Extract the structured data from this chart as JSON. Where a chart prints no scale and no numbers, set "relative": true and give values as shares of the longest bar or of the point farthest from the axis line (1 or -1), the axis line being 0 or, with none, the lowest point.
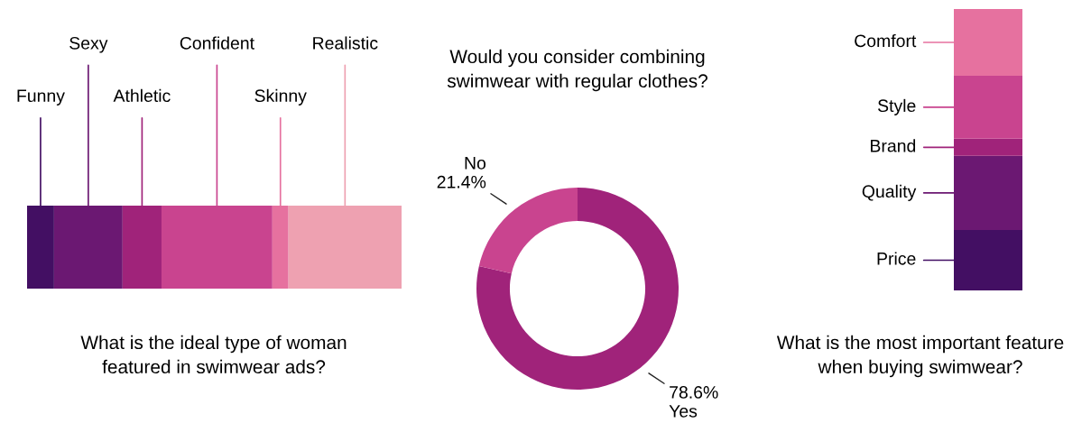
{
  "chart_data": [
    {
      "type": "bar",
      "orientation": "horizontal",
      "stacked": true,
      "relative": true,
      "title": "What is the ideal type of woman\nfeatured in swimwear ads?",
      "categories": [
        null
      ],
      "series": [
        {
          "name": "Funny",
          "color": "#430f63",
          "values": [
            0.072
          ]
        },
        {
          "name": "Sexy",
          "color": "#6b1872",
          "values": [
            0.183
          ]
        },
        {
          "name": "Athletic",
          "color": "#a0237a",
          "values": [
            0.104
          ]
        },
        {
          "name": "Confident",
          "color": "#c9448f",
          "values": [
            0.296
          ]
        },
        {
          "name": "Skinny",
          "color": "#e6719f",
          "values": [
            0.043
          ]
        },
        {
          "name": "Realistic",
          "color": "#eea1b1",
          "values": [
            0.302
          ]
        }
      ]
    },
    {
      "type": "donut",
      "title": "Would you consider combining\nswimwear with regular clothes?",
      "categories": [
        "Yes",
        "No"
      ],
      "values": [
        78.6,
        21.4
      ],
      "colors": [
        "#a0237a",
        "#c9448f"
      ],
      "value_labels": [
        "78.6%",
        "21.4%"
      ]
    },
    {
      "type": "bar",
      "stacked": true,
      "relative": true,
      "legend": "left",
      "title": "What is the most important feature\nwhen buying swimwear?",
      "categories": [
        null
      ],
      "series": [
        {
          "name": "Price",
          "color": "#430f63",
          "values": [
            0.215
          ]
        },
        {
          "name": "Quality",
          "color": "#6b1872",
          "values": [
            0.263
          ]
        },
        {
          "name": "Brand",
          "color": "#a0237a",
          "values": [
            0.061
          ]
        },
        {
          "name": "Style",
          "color": "#c9448f",
          "values": [
            0.224
          ]
        },
        {
          "name": "Comfort",
          "color": "#e6719f",
          "values": [
            0.237
          ]
        }
      ]
    }
  ]
}
